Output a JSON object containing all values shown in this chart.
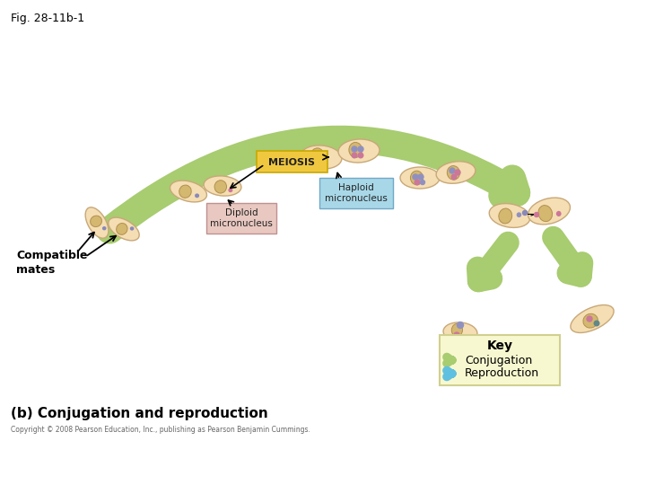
{
  "title": "Fig. 28-11b-1",
  "background_color": "#ffffff",
  "cell_body_color": "#F5DEB3",
  "cell_body_edge": "#C8A878",
  "macronucleus_color": "#D4B870",
  "micronucleus_diploid_color": "#8888BB",
  "micronucleus_haploid_color": "#CC7799",
  "meiosis_box_color": "#F0C840",
  "meiosis_box_text": "MEIOSIS",
  "diploid_label_box": "#E8C8C0",
  "haploid_label_box": "#A8D8E8",
  "diploid_label_text": "Diploid\nmicronucleus",
  "haploid_label_text": "Haploid\nmicronucleus",
  "compatible_mates_text": "Compatible\nmates",
  "conjugation_arrow_color": "#A8CC70",
  "reproduction_arrow_color": "#60C0E0",
  "key_box_color": "#F8F8D0",
  "key_border_color": "#D0D090",
  "subtitle": "(b) Conjugation and reproduction",
  "copyright": "Copyright © 2008 Pearson Education, Inc., publishing as Pearson Benjamin Cummings.",
  "key_conjugation": "Conjugation",
  "key_reproduction": "Reproduction"
}
